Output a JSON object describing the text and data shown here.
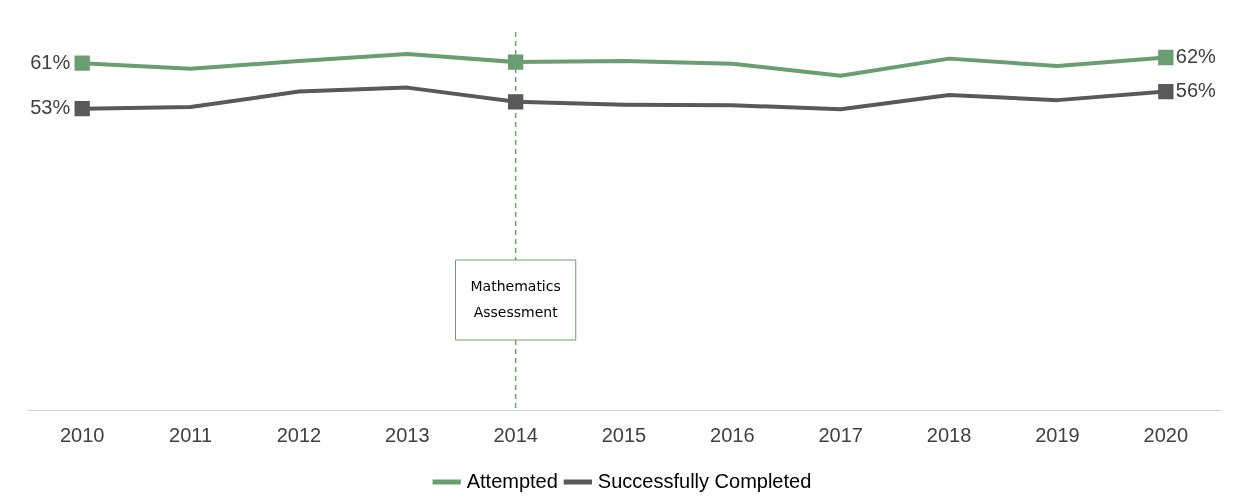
{
  "chart_data": {
    "type": "line",
    "categories": [
      "2010",
      "2011",
      "2012",
      "2013",
      "2014",
      "2015",
      "2016",
      "2017",
      "2018",
      "2019",
      "2020"
    ],
    "series": [
      {
        "name": "Attempted",
        "color": "#6a9e70",
        "values": [
          61,
          60,
          61.4,
          62.6,
          61.2,
          61.4,
          60.9,
          58.8,
          61.8,
          60.5,
          62
        ],
        "value_labels": [
          "61%",
          null,
          null,
          null,
          null,
          null,
          null,
          null,
          null,
          null,
          "62%"
        ]
      },
      {
        "name": "Successfully Completed",
        "color": "#595959",
        "values": [
          53,
          53.3,
          56,
          56.7,
          54.2,
          53.7,
          53.6,
          52.9,
          55.4,
          54.5,
          56
        ],
        "value_labels": [
          "53%",
          null,
          null,
          null,
          null,
          null,
          null,
          null,
          null,
          null,
          "56%"
        ]
      }
    ],
    "tick_labels": "x",
    "grid": false,
    "legend": "bottom",
    "line_style": "solid",
    "ref_lines": [
      {
        "axis": "x",
        "value": "2014",
        "label": "Mathematics Assessment",
        "color": "#6a9e70",
        "line_style": "dashed"
      }
    ]
  }
}
